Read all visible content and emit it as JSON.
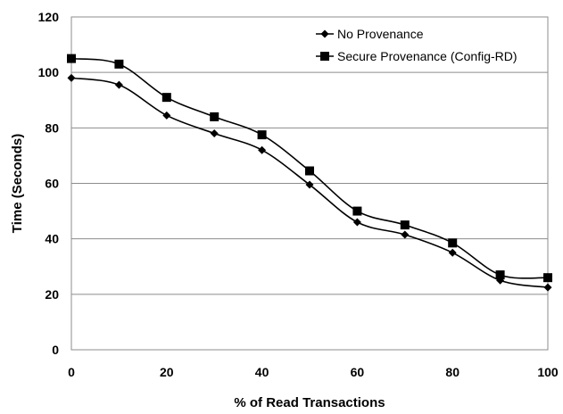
{
  "chart_data": {
    "type": "line",
    "title": "",
    "xlabel": "% of Read Transactions",
    "ylabel": "Time (Seconds)",
    "xlim": [
      0,
      100
    ],
    "ylim": [
      0,
      120
    ],
    "xticks": [
      "0",
      "20",
      "40",
      "60",
      "80",
      "100"
    ],
    "yticks": [
      "0",
      "20",
      "40",
      "60",
      "80",
      "100",
      "120"
    ],
    "grid": "horizontal",
    "legend_position": "top-right",
    "series": [
      {
        "name": "No Provenance",
        "marker": "diamond",
        "color": "#000000",
        "x": [
          0,
          10,
          20,
          30,
          40,
          50,
          60,
          70,
          80,
          90,
          100
        ],
        "y": [
          98,
          95.5,
          84.5,
          78,
          72,
          59.5,
          46,
          41.5,
          35,
          25,
          22.5
        ]
      },
      {
        "name": "Secure Provenance (Config-RD)",
        "marker": "square",
        "color": "#000000",
        "x": [
          0,
          10,
          20,
          30,
          40,
          50,
          60,
          70,
          80,
          90,
          100
        ],
        "y": [
          105,
          103,
          91,
          84,
          77.5,
          64.5,
          50,
          45,
          38.5,
          27,
          26
        ]
      }
    ]
  }
}
